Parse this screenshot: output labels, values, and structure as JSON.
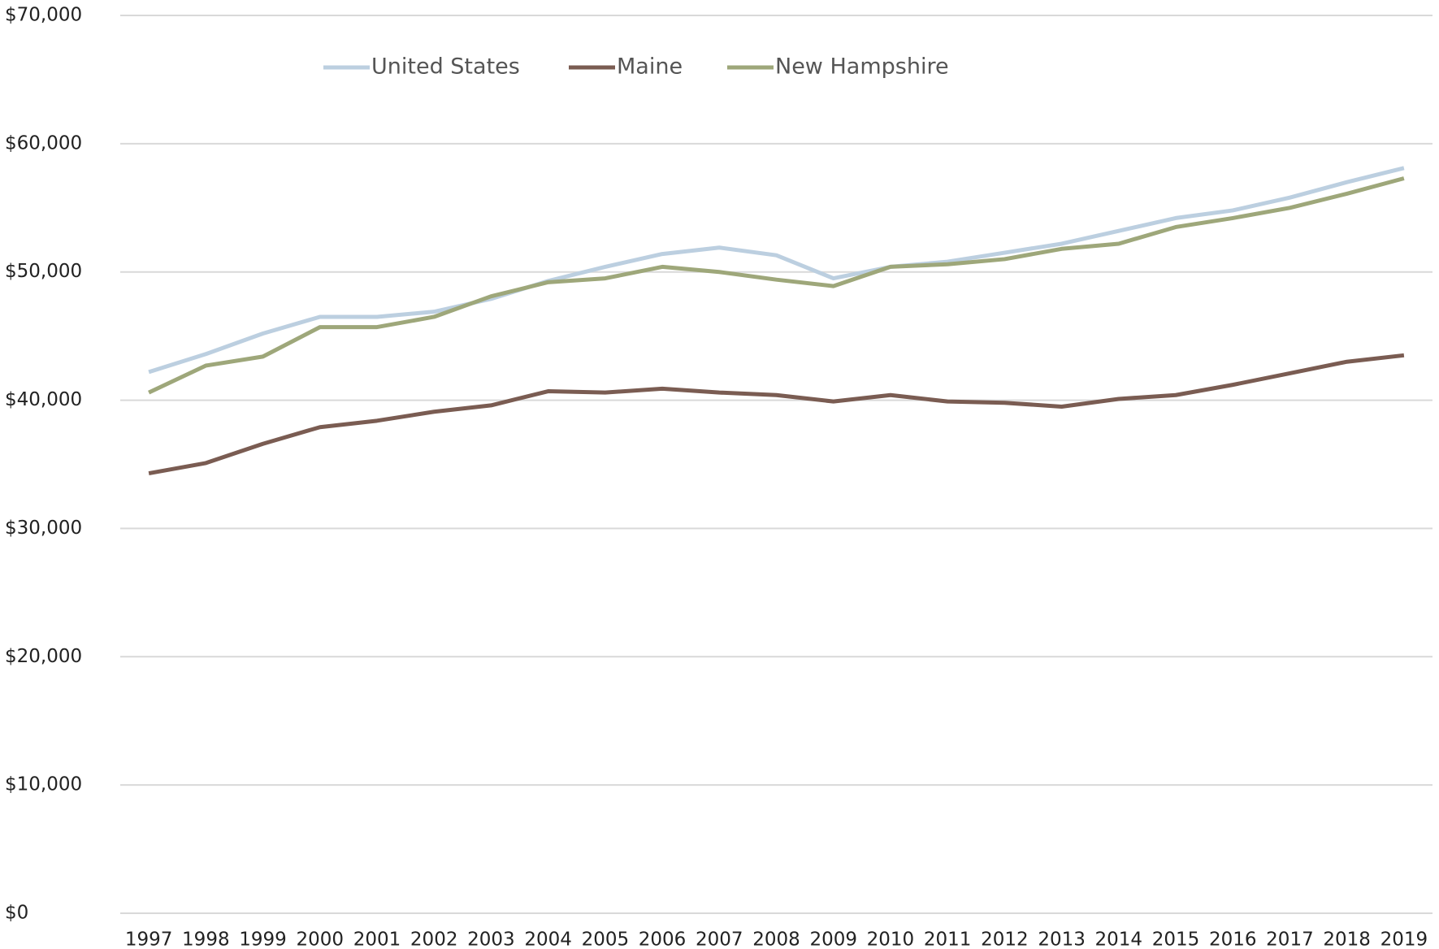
{
  "chart_data": {
    "type": "line",
    "categories": [
      "1997",
      "1998",
      "1999",
      "2000",
      "2001",
      "2002",
      "2003",
      "2004",
      "2005",
      "2006",
      "2007",
      "2008",
      "2009",
      "2010",
      "2011",
      "2012",
      "2013",
      "2014",
      "2015",
      "2016",
      "2017",
      "2018",
      "2019"
    ],
    "series": [
      {
        "name": "United States",
        "color": "#bccfe0",
        "values": [
          42200,
          43600,
          45200,
          46500,
          46500,
          46900,
          47900,
          49300,
          50400,
          51400,
          51900,
          51300,
          49500,
          50400,
          50800,
          51500,
          52200,
          53200,
          54200,
          54800,
          55800,
          57000,
          58100
        ]
      },
      {
        "name": "Maine",
        "color": "#7a5c52",
        "values": [
          34300,
          35100,
          36600,
          37900,
          38400,
          39100,
          39600,
          40700,
          40600,
          40900,
          40600,
          40400,
          39900,
          40400,
          39900,
          39800,
          39500,
          40100,
          40400,
          41200,
          42100,
          43000,
          43500
        ]
      },
      {
        "name": "New Hampshire",
        "color": "#9ea77a",
        "values": [
          40600,
          42700,
          43400,
          45700,
          45700,
          46500,
          48100,
          49200,
          49500,
          50400,
          50000,
          49400,
          48900,
          50400,
          50600,
          51000,
          51800,
          52200,
          53500,
          54200,
          55000,
          56100,
          57300
        ]
      }
    ],
    "ylim": [
      0,
      70000
    ],
    "yticks": [
      {
        "value": 0,
        "label": "$0"
      },
      {
        "value": 10000,
        "label": "$10,000"
      },
      {
        "value": 20000,
        "label": "$20,000"
      },
      {
        "value": 30000,
        "label": "$30,000"
      },
      {
        "value": 40000,
        "label": "$40,000"
      },
      {
        "value": 50000,
        "label": "$50,000"
      },
      {
        "value": 60000,
        "label": "$60,000"
      },
      {
        "value": 70000,
        "label": "$70,000"
      }
    ],
    "grid": true,
    "legend": "top"
  }
}
